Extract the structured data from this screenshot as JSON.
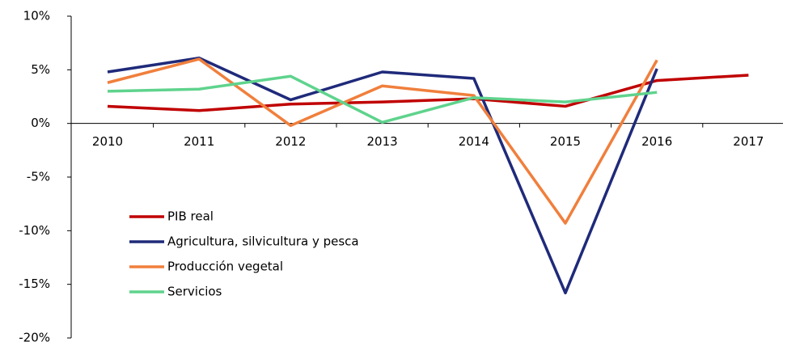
{
  "chart_data": {
    "type": "line",
    "categories": [
      "2010",
      "2011",
      "2012",
      "2013",
      "2014",
      "2015",
      "2016",
      "2017"
    ],
    "series": [
      {
        "name": "PIB real",
        "color": "#c00000",
        "values": [
          1.6,
          1.2,
          1.8,
          2.0,
          2.3,
          1.6,
          4.0,
          4.5
        ]
      },
      {
        "name": "Agricultura, silvicultura y pesca",
        "color": "#1f2a7a",
        "values": [
          4.8,
          6.1,
          2.2,
          4.8,
          4.2,
          -15.8,
          5.1,
          null
        ]
      },
      {
        "name": "Producción vegetal",
        "color": "#f07f3c",
        "values": [
          3.8,
          6.0,
          -0.2,
          3.5,
          2.6,
          -9.3,
          5.9,
          null
        ]
      },
      {
        "name": "Servicios",
        "color": "#5fd38d",
        "values": [
          3.0,
          3.2,
          4.4,
          0.1,
          2.4,
          2.0,
          2.9,
          null
        ]
      }
    ],
    "ylim": [
      -20,
      10
    ],
    "yticks": [
      {
        "value": -20,
        "label": "-20%"
      },
      {
        "value": -15,
        "label": "-15%"
      },
      {
        "value": -10,
        "label": "-10%"
      },
      {
        "value": -5,
        "label": "-5%"
      },
      {
        "value": 0,
        "label": "0%"
      },
      {
        "value": 5,
        "label": "5%"
      },
      {
        "value": 10,
        "label": "10%"
      }
    ],
    "legend": "lower-left"
  }
}
